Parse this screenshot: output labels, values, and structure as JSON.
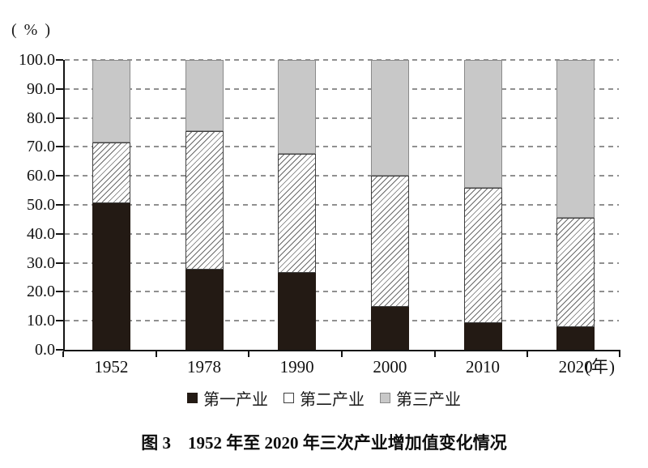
{
  "percent_label": "( % )",
  "x_axis_unit": "(年)",
  "figure_caption": "图 3　1952 年至 2020 年三次产业增加值变化情况",
  "legend": {
    "items": [
      {
        "label": "第一产业",
        "swatch": "solid-dark-square"
      },
      {
        "label": "第二产业",
        "swatch": "white-hatched-square"
      },
      {
        "label": "第三产业",
        "swatch": "gray-square"
      }
    ]
  },
  "colors": {
    "primary_fill": "#231a14",
    "hatch_line": "#6a6a6a",
    "tertiary_fill": "#c8c8c8",
    "tertiary_border": "#8a8a8a",
    "bar_border": "#3f3f3f",
    "gridline": "#909090",
    "axis": "#141414"
  },
  "chart_data": {
    "type": "bar",
    "stacked": true,
    "orientation": "vertical",
    "title": "图 3　1952 年至 2020 年三次产业增加值变化情况",
    "categories": [
      "1952",
      "1978",
      "1990",
      "2000",
      "2010",
      "2020"
    ],
    "series": [
      {
        "name": "第一产业",
        "style": "solid-black",
        "values": [
          50.5,
          27.7,
          26.6,
          14.7,
          9.3,
          7.7
        ]
      },
      {
        "name": "第二产业",
        "style": "white-diagonal-hatch",
        "values": [
          20.9,
          47.7,
          41.0,
          45.5,
          46.5,
          37.8
        ]
      },
      {
        "name": "第三产业",
        "style": "light-gray",
        "values": [
          28.6,
          24.6,
          32.4,
          39.8,
          44.2,
          54.5
        ]
      }
    ],
    "xlabel": "(年)",
    "ylabel": "( % )",
    "ylim": [
      0,
      100
    ],
    "ytick_step": 10,
    "ytick_labels": [
      "0.0",
      "10.0",
      "20.0",
      "30.0",
      "40.0",
      "50.0",
      "60.0",
      "70.0",
      "80.0",
      "90.0",
      "100.0"
    ],
    "grid": "horizontal-dashed",
    "legend_position": "bottom"
  }
}
